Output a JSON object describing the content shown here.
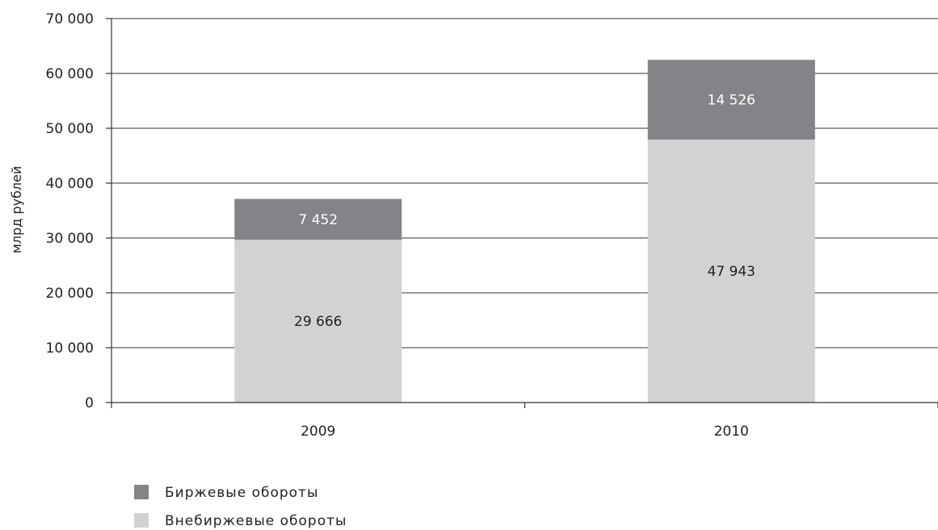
{
  "chart_data": {
    "type": "bar",
    "stacked": true,
    "categories": [
      "2009",
      "2010"
    ],
    "series": [
      {
        "name": "Внебиржевые обороты",
        "values": [
          29666,
          47943
        ],
        "value_labels": [
          "29 666",
          "47 943"
        ],
        "color": "#d1d2d4",
        "label_color": "#222222"
      },
      {
        "name": "Биржевые обороты",
        "values": [
          7452,
          14526
        ],
        "value_labels": [
          "7 452",
          "14 526"
        ],
        "color": "#838487",
        "label_color": "#ffffff"
      }
    ],
    "ylabel": "млрд рублей",
    "xlabel": "",
    "ylim": [
      0,
      70000
    ],
    "yticks": [
      0,
      10000,
      20000,
      30000,
      40000,
      50000,
      60000,
      70000
    ],
    "ytick_labels": [
      "0",
      "10 000",
      "20 000",
      "30 000",
      "40 000",
      "50 000",
      "60 000",
      "70 000"
    ],
    "grid": true,
    "legend_position": "bottom-left",
    "legend": [
      {
        "name": "Биржевые обороты",
        "color": "#838487"
      },
      {
        "name": "Внебиржевые обороты",
        "color": "#d1d2d4"
      }
    ]
  }
}
